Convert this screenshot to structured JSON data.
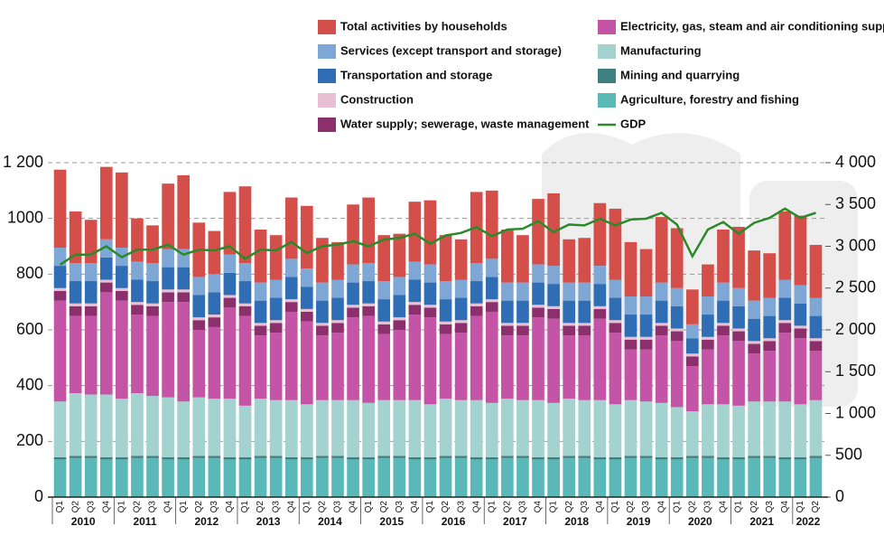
{
  "chart_data": {
    "type": "stacked_bar_line",
    "categories": [
      "Q1",
      "Q2",
      "Q3",
      "Q4",
      "Q1",
      "Q2",
      "Q3",
      "Q4",
      "Q1",
      "Q2",
      "Q3",
      "Q4",
      "Q1",
      "Q2",
      "Q3",
      "Q4",
      "Q1",
      "Q2",
      "Q3",
      "Q4",
      "Q1",
      "Q2",
      "Q3",
      "Q4",
      "Q1",
      "Q2",
      "Q3",
      "Q4",
      "Q1",
      "Q2",
      "Q3",
      "Q4",
      "Q1",
      "Q2",
      "Q3",
      "Q4",
      "Q1",
      "Q2",
      "Q3",
      "Q4",
      "Q1",
      "Q2",
      "Q3",
      "Q4",
      "Q1",
      "Q2",
      "Q3",
      "Q4",
      "Q1",
      "Q2"
    ],
    "x_groups": [
      "2010",
      "2011",
      "2012",
      "2013",
      "2014",
      "2015",
      "2016",
      "2017",
      "2018",
      "2019",
      "2020",
      "2021",
      "2022"
    ],
    "series": [
      {
        "name": "Agriculture, forestry and fishing",
        "color": "#5bb8b8",
        "values": [
          135,
          140,
          140,
          135,
          135,
          140,
          140,
          135,
          135,
          140,
          140,
          135,
          135,
          140,
          140,
          135,
          135,
          140,
          140,
          135,
          135,
          140,
          140,
          135,
          135,
          140,
          140,
          135,
          135,
          140,
          140,
          135,
          135,
          140,
          140,
          135,
          135,
          140,
          140,
          135,
          135,
          140,
          140,
          135,
          135,
          140,
          140,
          135,
          135,
          140
        ]
      },
      {
        "name": "Mining and quarrying",
        "color": "#3e7f7f",
        "values": [
          8,
          8,
          8,
          8,
          8,
          8,
          8,
          8,
          8,
          8,
          8,
          8,
          8,
          8,
          8,
          8,
          8,
          8,
          8,
          8,
          8,
          8,
          8,
          8,
          8,
          8,
          8,
          8,
          8,
          8,
          8,
          8,
          8,
          8,
          8,
          8,
          8,
          8,
          8,
          8,
          8,
          8,
          8,
          8,
          8,
          8,
          8,
          8,
          8,
          8
        ]
      },
      {
        "name": "Manufacturing",
        "color": "#a3d2cf",
        "values": [
          200,
          225,
          220,
          225,
          210,
          225,
          215,
          215,
          200,
          210,
          205,
          210,
          185,
          205,
          200,
          205,
          190,
          200,
          200,
          205,
          195,
          200,
          200,
          205,
          190,
          205,
          200,
          205,
          195,
          205,
          200,
          205,
          195,
          205,
          200,
          205,
          190,
          200,
          195,
          195,
          180,
          160,
          185,
          190,
          185,
          195,
          195,
          200,
          190,
          200
        ]
      },
      {
        "name": "Electricity, gas, steam and air conditioning supply",
        "color": "#c454a5",
        "values": [
          362,
          277,
          282,
          367,
          352,
          282,
          287,
          342,
          357,
          242,
          257,
          327,
          322,
          227,
          242,
          317,
          297,
          232,
          242,
          297,
          312,
          237,
          252,
          307,
          312,
          232,
          242,
          302,
          327,
          227,
          232,
          297,
          302,
          227,
          232,
          292,
          257,
          182,
          187,
          242,
          237,
          162,
          197,
          247,
          232,
          172,
          182,
          247,
          237,
          177
        ]
      },
      {
        "name": "Water supply; sewerage, waste management",
        "color": "#8b2f6d",
        "values": [
          35,
          35,
          35,
          35,
          35,
          35,
          35,
          35,
          35,
          35,
          35,
          35,
          35,
          35,
          35,
          35,
          35,
          35,
          35,
          35,
          35,
          35,
          35,
          35,
          35,
          35,
          35,
          35,
          35,
          35,
          35,
          35,
          35,
          35,
          35,
          35,
          35,
          35,
          35,
          35,
          35,
          35,
          35,
          35,
          35,
          35,
          35,
          35,
          35,
          35
        ]
      },
      {
        "name": "Construction",
        "color": "#e8bfd3",
        "values": [
          10,
          10,
          10,
          10,
          10,
          10,
          10,
          10,
          10,
          10,
          10,
          10,
          10,
          10,
          10,
          10,
          10,
          10,
          10,
          10,
          10,
          10,
          10,
          10,
          10,
          10,
          10,
          10,
          10,
          10,
          10,
          10,
          10,
          10,
          10,
          10,
          10,
          10,
          10,
          10,
          10,
          10,
          10,
          10,
          10,
          10,
          10,
          10,
          10,
          10
        ]
      },
      {
        "name": "Transportation and storage",
        "color": "#2f6db5",
        "values": [
          80,
          80,
          80,
          80,
          80,
          80,
          80,
          80,
          80,
          80,
          80,
          80,
          80,
          80,
          80,
          80,
          80,
          80,
          80,
          80,
          80,
          80,
          80,
          80,
          80,
          80,
          80,
          80,
          80,
          80,
          80,
          80,
          80,
          80,
          80,
          80,
          80,
          80,
          80,
          80,
          80,
          55,
          80,
          80,
          80,
          80,
          80,
          80,
          80,
          80
        ]
      },
      {
        "name": "Services (except transport and storage)",
        "color": "#7fa7d6",
        "values": [
          65,
          65,
          65,
          65,
          65,
          65,
          65,
          65,
          65,
          65,
          65,
          65,
          65,
          65,
          65,
          65,
          65,
          65,
          65,
          65,
          65,
          65,
          65,
          65,
          65,
          65,
          65,
          65,
          65,
          65,
          65,
          65,
          65,
          65,
          65,
          65,
          65,
          65,
          65,
          65,
          65,
          50,
          65,
          65,
          65,
          65,
          65,
          65,
          65,
          65
        ]
      },
      {
        "name": "Total activities by households",
        "color": "#d44f4a",
        "values": [
          280,
          185,
          155,
          260,
          270,
          155,
          135,
          235,
          265,
          195,
          155,
          225,
          275,
          190,
          160,
          220,
          225,
          160,
          135,
          215,
          235,
          165,
          155,
          215,
          230,
          165,
          145,
          255,
          245,
          190,
          170,
          235,
          260,
          155,
          160,
          225,
          255,
          195,
          170,
          235,
          215,
          125,
          115,
          190,
          220,
          180,
          160,
          245,
          250,
          190
        ]
      },
      {
        "name": "GDP",
        "color": "#2a8a2a",
        "axis": "y2",
        "values": [
          2780,
          2900,
          2900,
          3000,
          2870,
          2960,
          2960,
          3020,
          2900,
          2960,
          2950,
          3000,
          2850,
          2960,
          2950,
          3050,
          2920,
          3000,
          3020,
          3060,
          3000,
          3080,
          3100,
          3150,
          3030,
          3130,
          3160,
          3230,
          3120,
          3200,
          3210,
          3300,
          3170,
          3260,
          3250,
          3330,
          3250,
          3320,
          3330,
          3400,
          3260,
          2880,
          3200,
          3290,
          3150,
          3280,
          3340,
          3450,
          3340,
          3400
        ]
      }
    ],
    "ylim": [
      0,
      1200
    ],
    "yticks": [
      0,
      200,
      400,
      600,
      800,
      1000,
      {
        "value": 1200,
        "label": "1 200"
      }
    ],
    "y2lim": [
      0,
      4000
    ],
    "y2ticks": [
      0,
      500,
      {
        "value": 1000,
        "label": "1 000"
      },
      {
        "value": 1500,
        "label": "1 500"
      },
      {
        "value": 2000,
        "label": "2 000"
      },
      {
        "value": 2500,
        "label": "2 500"
      },
      {
        "value": 3000,
        "label": "3 000"
      },
      {
        "value": 3500,
        "label": "3 500"
      },
      {
        "value": 4000,
        "label": "4 000"
      }
    ],
    "grid": true
  }
}
